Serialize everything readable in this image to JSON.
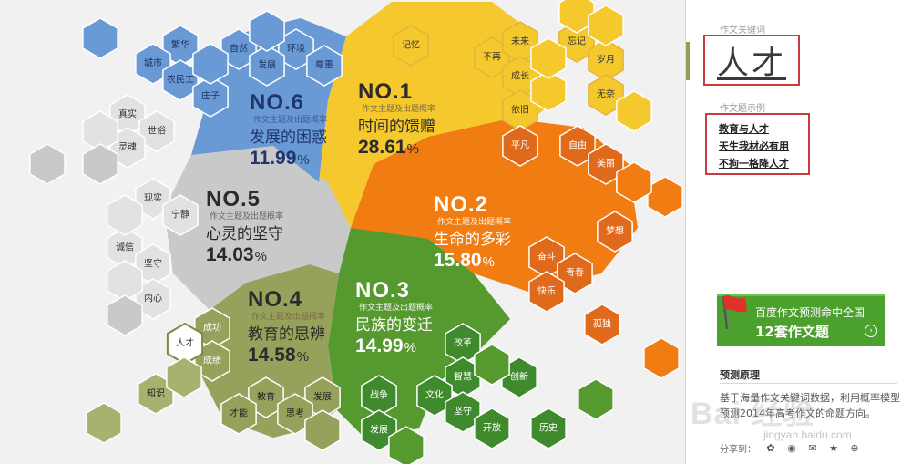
{
  "colors": {
    "yellow": "#f5c92e",
    "yellow_dark": "#e2ad1c",
    "orange": "#f07c12",
    "orange_dark": "#e06a1c",
    "green": "#55992f",
    "green_dark": "#3f8a2c",
    "olive": "#96a25c",
    "olive_light": "#a8b270",
    "blue": "#6a9ad6",
    "blue_dark": "#4a7cc4",
    "grey": "#c9c9c9",
    "grey_light": "#e2e2e2",
    "highlight_border": "#c43c3c",
    "banner_green": "#4ba02e"
  },
  "groups": [
    {
      "no": "NO.1",
      "sub": "作文主题及出题概率",
      "topic": "时间的馈赠",
      "pct": "28.61",
      "unit": "%"
    },
    {
      "no": "NO.2",
      "sub": "作文主题及出题概率",
      "topic": "生命的多彩",
      "pct": "15.80",
      "unit": "%"
    },
    {
      "no": "NO.3",
      "sub": "作文主题及出题概率",
      "topic": "民族的变迁",
      "pct": "14.99",
      "unit": "%"
    },
    {
      "no": "NO.4",
      "sub": "作文主题及出题概率",
      "topic": "教育的思辨",
      "pct": "14.58",
      "unit": "%"
    },
    {
      "no": "NO.5",
      "sub": "作文主题及出题概率",
      "topic": "心灵的坚守",
      "pct": "14.03",
      "unit": "%"
    },
    {
      "no": "NO.6",
      "sub": "作文主题及出题概率",
      "topic": "发展的困惑",
      "pct": "11.99",
      "unit": "%"
    }
  ],
  "keywords": {
    "yellow": [
      "记忆",
      "不再",
      "未来",
      "成长",
      "依旧",
      "忘记",
      "岁月",
      "无奈"
    ],
    "orange": [
      "平凡",
      "自由",
      "美丽",
      "梦想",
      "奋斗",
      "青春",
      "快乐",
      "孤独"
    ],
    "green": [
      "改革",
      "智慧",
      "文化",
      "战争",
      "坚守",
      "创新",
      "开放",
      "历史",
      "发展"
    ],
    "olive": [
      "成功",
      "成绩",
      "人才",
      "知识",
      "教育",
      "发展",
      "才能",
      "思考"
    ],
    "grey": [
      "真实",
      "世俗",
      "灵魂",
      "现实",
      "宁静",
      "诚信",
      "坚守",
      "内心"
    ],
    "blue": [
      "繁华",
      "城市",
      "农民工",
      "自然",
      "环境",
      "发展",
      "尊重",
      "庄子"
    ]
  },
  "sidebar": {
    "keyword_caption": "作文关键词",
    "keyword": "人才",
    "examples_caption": "作文题示例",
    "examples": [
      "教育与人才",
      "天生我材必有用",
      "不拘一格降人才"
    ],
    "banner_line1": "百度作文预测命中全国",
    "banner_line2": "12套作文题",
    "banner_arrow": "›",
    "prediction_title": "预测原理",
    "prediction_text": "基于海量作文关键词数据，利用概率模型预测2014年高考作文的命题方向。",
    "share_label": "分享到："
  },
  "watermark": {
    "text": "Bai 经验",
    "url": "jingyan.baidu.com"
  }
}
